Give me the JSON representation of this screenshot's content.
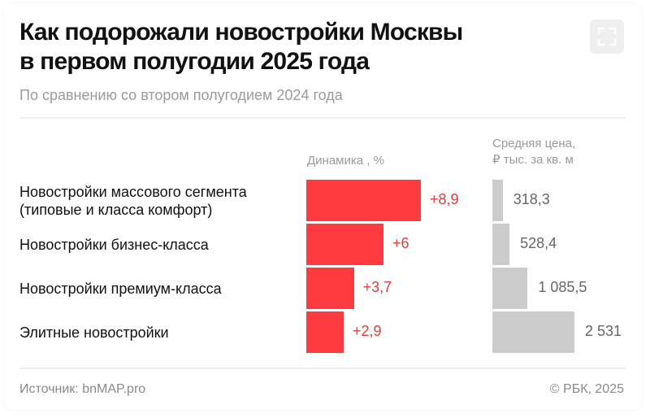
{
  "title_line1": "Как подорожали новостройки Москвы",
  "title_line2": "в первом полугодии 2025 года",
  "subtitle": "По сравнению со втором полугодием 2024 года",
  "chart_data": {
    "type": "bar",
    "categories": [
      [
        "Новостройки массового сегмента",
        "(типовые и класса комфорт)"
      ],
      [
        "Новостройки бизнес-класса"
      ],
      [
        "Новостройки премиум-класса"
      ],
      [
        "Элитные новостройки"
      ]
    ],
    "series": [
      {
        "name": "Динамика , %",
        "values": [
          8.9,
          6,
          3.7,
          2.9
        ],
        "labels": [
          "+8,9",
          "+6",
          "+3,7",
          "+2,9"
        ],
        "color": "#ff3b3f",
        "label_color": "#e53b3b"
      },
      {
        "name": "Средняя цена, ₽ тыс. за кв. м",
        "name_lines": [
          "Средняя цена,",
          "₽ тыс. за кв. м"
        ],
        "values": [
          318.3,
          528.4,
          1085.5,
          2531
        ],
        "labels": [
          "318,3",
          "528,4",
          "1 085,5",
          "2 531"
        ],
        "color": "#cccccc",
        "label_color": "#666666"
      }
    ],
    "orientation": "horizontal"
  },
  "footer": {
    "source": "Источник: bnMAP.pro",
    "copyright": "© РБК, 2025"
  },
  "expand_icon": "fullscreen-icon"
}
